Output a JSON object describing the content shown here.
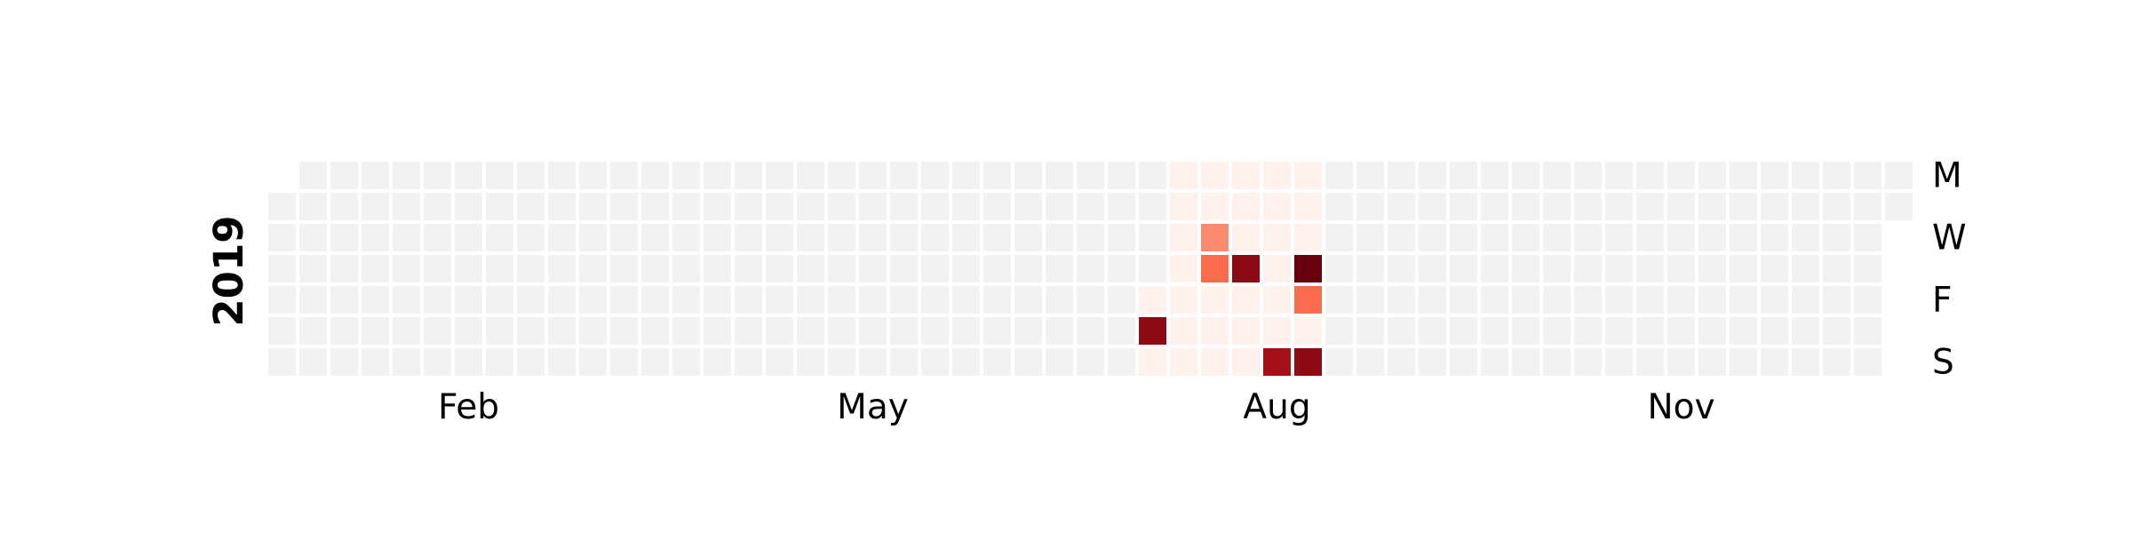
{
  "chart_data": {
    "type": "heatmap",
    "title": "",
    "year": "2019",
    "layout": "calendar",
    "month_labels": [
      "Feb",
      "May",
      "Aug",
      "Nov"
    ],
    "day_labels": [
      "M",
      "W",
      "F",
      "S"
    ],
    "empty_color": "#f2f2f2",
    "colormap": "Reds",
    "colors": {
      "low": "#fff1eb",
      "mid_low": "#fc8b6e",
      "mid": "#fb6b4c",
      "high": "#a51119",
      "very_high": "#8b0a14",
      "max": "#67000d"
    },
    "grid": false,
    "legend": "none",
    "active_range": [
      "2019-07-19",
      "2019-08-25"
    ],
    "values": [
      {
        "date": "2019-07-20",
        "level": "very_high"
      },
      {
        "date": "2019-07-31",
        "level": "mid_low"
      },
      {
        "date": "2019-08-01",
        "level": "mid"
      },
      {
        "date": "2019-08-08",
        "level": "very_high"
      },
      {
        "date": "2019-08-18",
        "level": "high"
      },
      {
        "date": "2019-08-22",
        "level": "max"
      },
      {
        "date": "2019-08-23",
        "level": "mid"
      },
      {
        "date": "2019-08-25",
        "level": "very_high"
      }
    ]
  }
}
